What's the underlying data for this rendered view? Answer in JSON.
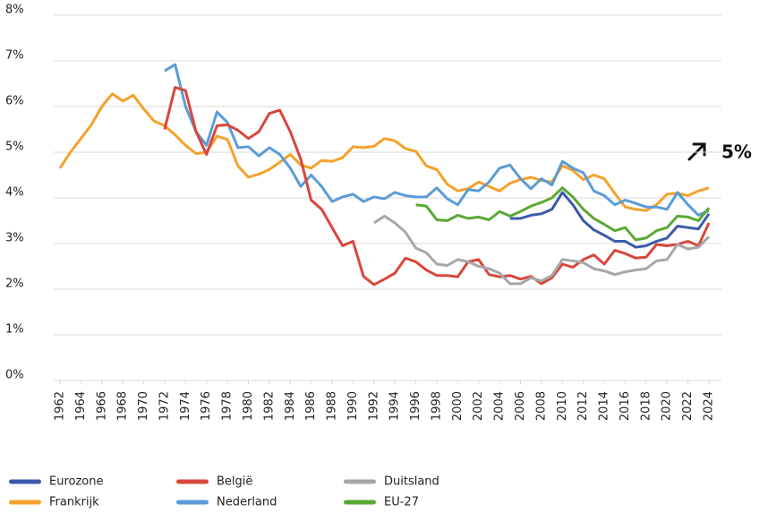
{
  "chart_data": {
    "type": "line",
    "annotation": "5%",
    "x": [
      1962,
      1963,
      1964,
      1965,
      1966,
      1967,
      1968,
      1969,
      1970,
      1971,
      1972,
      1973,
      1974,
      1975,
      1976,
      1977,
      1978,
      1979,
      1980,
      1981,
      1982,
      1983,
      1984,
      1985,
      1986,
      1987,
      1988,
      1989,
      1990,
      1991,
      1992,
      1993,
      1994,
      1995,
      1996,
      1997,
      1998,
      1999,
      2000,
      2001,
      2002,
      2003,
      2004,
      2005,
      2006,
      2007,
      2008,
      2009,
      2010,
      2011,
      2012,
      2013,
      2014,
      2015,
      2016,
      2017,
      2018,
      2019,
      2020,
      2021,
      2022,
      2023,
      2024
    ],
    "xlim": [
      1962,
      2024
    ],
    "xticks": [
      1962,
      1964,
      1966,
      1968,
      1970,
      1972,
      1974,
      1976,
      1978,
      1980,
      1982,
      1984,
      1986,
      1988,
      1990,
      1992,
      1994,
      1996,
      1998,
      2000,
      2002,
      2004,
      2006,
      2008,
      2010,
      2012,
      2014,
      2016,
      2018,
      2020,
      2022,
      2024
    ],
    "ylim": [
      0,
      8
    ],
    "yticks": [
      {
        "value": 0,
        "label": "0%"
      },
      {
        "value": 1,
        "label": "1%"
      },
      {
        "value": 2,
        "label": "2%"
      },
      {
        "value": 3,
        "label": "3%"
      },
      {
        "value": 4,
        "label": "4%"
      },
      {
        "value": 5,
        "label": "5%"
      },
      {
        "value": 6,
        "label": "6%"
      },
      {
        "value": 7,
        "label": "7%"
      },
      {
        "value": 8,
        "label": "8%"
      }
    ],
    "grid": true,
    "series": [
      {
        "name": "Eurozone",
        "color": "#3b5ba9",
        "values": [
          null,
          null,
          null,
          null,
          null,
          null,
          null,
          null,
          null,
          null,
          null,
          null,
          null,
          null,
          null,
          null,
          null,
          null,
          null,
          null,
          null,
          null,
          null,
          null,
          null,
          null,
          null,
          null,
          null,
          null,
          null,
          null,
          null,
          null,
          null,
          null,
          null,
          null,
          null,
          null,
          null,
          null,
          null,
          3.55,
          3.55,
          3.62,
          3.65,
          3.75,
          4.12,
          3.85,
          3.5,
          3.3,
          3.18,
          3.05,
          3.05,
          2.92,
          2.95,
          3.05,
          3.12,
          3.38,
          3.35,
          3.32,
          3.65
        ]
      },
      {
        "name": "België",
        "color": "#d8473b",
        "values": [
          null,
          null,
          null,
          null,
          null,
          null,
          null,
          null,
          null,
          null,
          5.5,
          6.42,
          6.35,
          5.45,
          4.95,
          5.58,
          5.6,
          5.48,
          5.3,
          5.45,
          5.85,
          5.92,
          5.45,
          4.85,
          3.95,
          3.75,
          3.35,
          2.95,
          3.05,
          2.28,
          2.1,
          2.22,
          2.35,
          2.68,
          2.6,
          2.42,
          2.3,
          2.3,
          2.27,
          2.6,
          2.65,
          2.32,
          2.27,
          2.3,
          2.22,
          2.28,
          2.12,
          2.25,
          2.55,
          2.48,
          2.65,
          2.75,
          2.55,
          2.85,
          2.78,
          2.68,
          2.7,
          2.98,
          2.95,
          2.98,
          3.05,
          2.95,
          3.45
        ]
      },
      {
        "name": "Duitsland",
        "color": "#a7a7a7",
        "values": [
          null,
          null,
          null,
          null,
          null,
          null,
          null,
          null,
          null,
          null,
          null,
          null,
          null,
          null,
          null,
          null,
          null,
          null,
          null,
          null,
          null,
          null,
          null,
          null,
          null,
          null,
          null,
          null,
          null,
          null,
          3.45,
          3.6,
          3.45,
          3.25,
          2.9,
          2.8,
          2.55,
          2.52,
          2.65,
          2.6,
          2.5,
          2.45,
          2.35,
          2.12,
          2.12,
          2.25,
          2.18,
          2.3,
          2.65,
          2.62,
          2.58,
          2.45,
          2.4,
          2.32,
          2.38,
          2.42,
          2.45,
          2.62,
          2.65,
          2.98,
          2.88,
          2.92,
          3.15
        ]
      },
      {
        "name": "Frankrijk",
        "color": "#f5a12b",
        "values": [
          4.65,
          5.0,
          5.3,
          5.6,
          6.0,
          6.28,
          6.12,
          6.25,
          5.95,
          5.68,
          5.58,
          5.38,
          5.15,
          4.97,
          5.0,
          5.35,
          5.28,
          4.7,
          4.45,
          4.52,
          4.62,
          4.78,
          4.95,
          4.72,
          4.65,
          4.82,
          4.8,
          4.88,
          5.12,
          5.1,
          5.13,
          5.3,
          5.25,
          5.08,
          5.02,
          4.7,
          4.62,
          4.3,
          4.15,
          4.2,
          4.35,
          4.25,
          4.15,
          4.32,
          4.4,
          4.45,
          4.38,
          4.35,
          4.7,
          4.6,
          4.4,
          4.5,
          4.42,
          4.1,
          3.8,
          3.75,
          3.72,
          3.85,
          4.08,
          4.1,
          4.05,
          4.15,
          4.22
        ]
      },
      {
        "name": "Nederland",
        "color": "#5b9cd6",
        "values": [
          null,
          null,
          null,
          null,
          null,
          null,
          null,
          null,
          null,
          null,
          6.78,
          6.92,
          6.0,
          5.45,
          5.15,
          5.88,
          5.65,
          5.1,
          5.12,
          4.92,
          5.1,
          4.95,
          4.65,
          4.25,
          4.5,
          4.25,
          3.92,
          4.02,
          4.08,
          3.92,
          4.02,
          3.98,
          4.12,
          4.05,
          4.02,
          4.02,
          4.22,
          3.98,
          3.85,
          4.18,
          4.15,
          4.35,
          4.65,
          4.72,
          4.42,
          4.2,
          4.42,
          4.28,
          4.8,
          4.65,
          4.55,
          4.15,
          4.05,
          3.85,
          3.95,
          3.88,
          3.8,
          3.8,
          3.75,
          4.12,
          3.85,
          3.62,
          3.72
        ]
      },
      {
        "name": "EU-27",
        "color": "#5aa933",
        "values": [
          null,
          null,
          null,
          null,
          null,
          null,
          null,
          null,
          null,
          null,
          null,
          null,
          null,
          null,
          null,
          null,
          null,
          null,
          null,
          null,
          null,
          null,
          null,
          null,
          null,
          null,
          null,
          null,
          null,
          null,
          null,
          null,
          null,
          null,
          3.85,
          3.82,
          3.52,
          3.5,
          3.62,
          3.55,
          3.58,
          3.52,
          3.7,
          3.6,
          3.7,
          3.82,
          3.9,
          4.0,
          4.22,
          4.02,
          3.75,
          3.55,
          3.42,
          3.28,
          3.35,
          3.08,
          3.12,
          3.28,
          3.35,
          3.6,
          3.58,
          3.5,
          3.78
        ]
      }
    ]
  }
}
